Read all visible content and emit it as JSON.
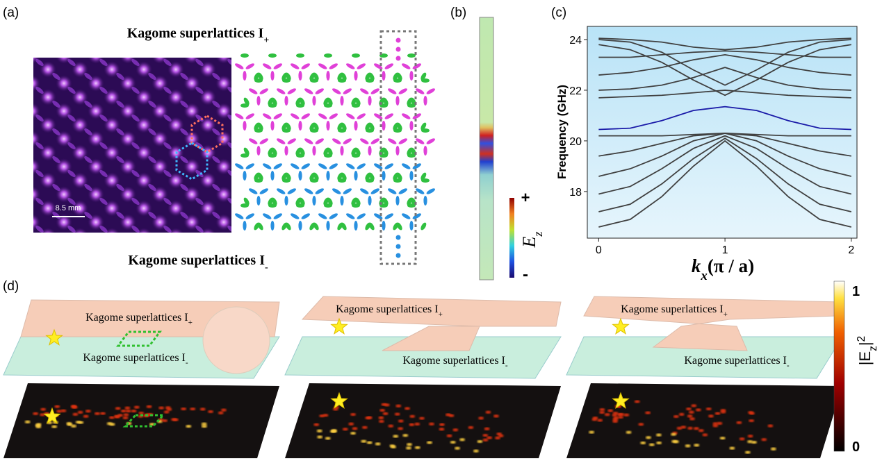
{
  "panel_labels": [
    "(a)",
    "(b)",
    "(c)",
    "(d)"
  ],
  "panel_a": {
    "title_top": {
      "main": "Kagome superlattices I",
      "sub": "+"
    },
    "title_bottom": {
      "main": "Kagome superlattices I",
      "sub": "-"
    },
    "scale_bar": "8.5 mm"
  },
  "panel_b": {
    "colorbar_max": "+",
    "colorbar_min": "-",
    "colorbar_label": {
      "main": "E",
      "sub": "z"
    }
  },
  "chart_data": {
    "type": "line",
    "xlabel": {
      "main": "k",
      "sub": "x",
      "tail": "(π / a)"
    },
    "ylabel": "Frequency (GHz)",
    "x": [
      0,
      0.25,
      0.5,
      0.75,
      1,
      1.25,
      1.5,
      1.75,
      2
    ],
    "xlim": [
      -0.09,
      2.045
    ],
    "ylim": [
      16.16,
      24.52
    ],
    "xticks": [
      0,
      1,
      2
    ],
    "yticks": [
      18,
      20,
      22,
      24
    ],
    "series": [
      {
        "color": "#404040",
        "values": [
          16.6,
          16.9,
          17.8,
          19.0,
          20.0,
          19.0,
          17.8,
          16.9,
          16.6
        ]
      },
      {
        "color": "#404040",
        "values": [
          17.2,
          17.5,
          18.3,
          19.3,
          20.1,
          19.3,
          18.3,
          17.5,
          17.2
        ]
      },
      {
        "color": "#404040",
        "values": [
          17.9,
          18.2,
          18.9,
          19.7,
          20.2,
          19.7,
          18.9,
          18.2,
          17.9
        ]
      },
      {
        "color": "#404040",
        "values": [
          18.6,
          18.9,
          19.4,
          20.0,
          20.3,
          20.0,
          19.4,
          18.9,
          18.6
        ]
      },
      {
        "color": "#404040",
        "values": [
          19.4,
          19.6,
          19.9,
          20.2,
          20.3,
          20.2,
          19.9,
          19.6,
          19.4
        ]
      },
      {
        "color": "#404040",
        "values": [
          20.2,
          20.2,
          20.2,
          20.25,
          20.3,
          20.25,
          20.2,
          20.2,
          20.2
        ]
      },
      {
        "color": "#1a1aa8",
        "values": [
          20.45,
          20.5,
          20.8,
          21.2,
          21.35,
          21.2,
          20.8,
          20.5,
          20.45
        ]
      },
      {
        "color": "#404040",
        "values": [
          21.7,
          21.75,
          21.8,
          21.9,
          22.0,
          21.9,
          21.8,
          21.75,
          21.7
        ]
      },
      {
        "color": "#404040",
        "values": [
          22.0,
          22.05,
          22.2,
          22.5,
          22.9,
          22.5,
          22.2,
          22.05,
          22.0
        ]
      },
      {
        "color": "#404040",
        "values": [
          22.6,
          22.7,
          22.9,
          23.2,
          23.4,
          23.2,
          22.9,
          22.7,
          22.6
        ]
      },
      {
        "color": "#404040",
        "values": [
          23.3,
          23.3,
          23.4,
          23.5,
          23.55,
          23.5,
          23.4,
          23.3,
          23.3
        ]
      },
      {
        "color": "#404040",
        "values": [
          23.8,
          23.6,
          23.1,
          22.4,
          21.8,
          22.4,
          23.1,
          23.6,
          23.8
        ]
      },
      {
        "color": "#404040",
        "values": [
          24.0,
          23.9,
          23.5,
          22.8,
          22.2,
          22.8,
          23.5,
          23.9,
          24.0
        ]
      },
      {
        "color": "#404040",
        "values": [
          24.05,
          24.0,
          23.9,
          23.7,
          23.6,
          23.7,
          23.9,
          24.0,
          24.05
        ]
      }
    ]
  },
  "panel_d": {
    "panels": [
      {
        "top": {
          "main": "Kagome superlattices I",
          "sub": "+"
        },
        "bottom": {
          "main": "Kagome superlattices I",
          "sub": "-"
        }
      },
      {
        "top": {
          "main": "Kagome superlattices I",
          "sub": "+"
        },
        "bottom": {
          "main": "Kagome superlattices I",
          "sub": "-"
        }
      },
      {
        "top": {
          "main": "Kagome superlattices I",
          "sub": "+"
        },
        "bottom": {
          "main": "Kagome superlattices I",
          "sub": "-"
        }
      }
    ],
    "colorbar_max": "1",
    "colorbar_min": "0",
    "colorbar_label": {
      "main": "|E",
      "sub": "z",
      "tail": "|",
      "sup": "2"
    }
  }
}
